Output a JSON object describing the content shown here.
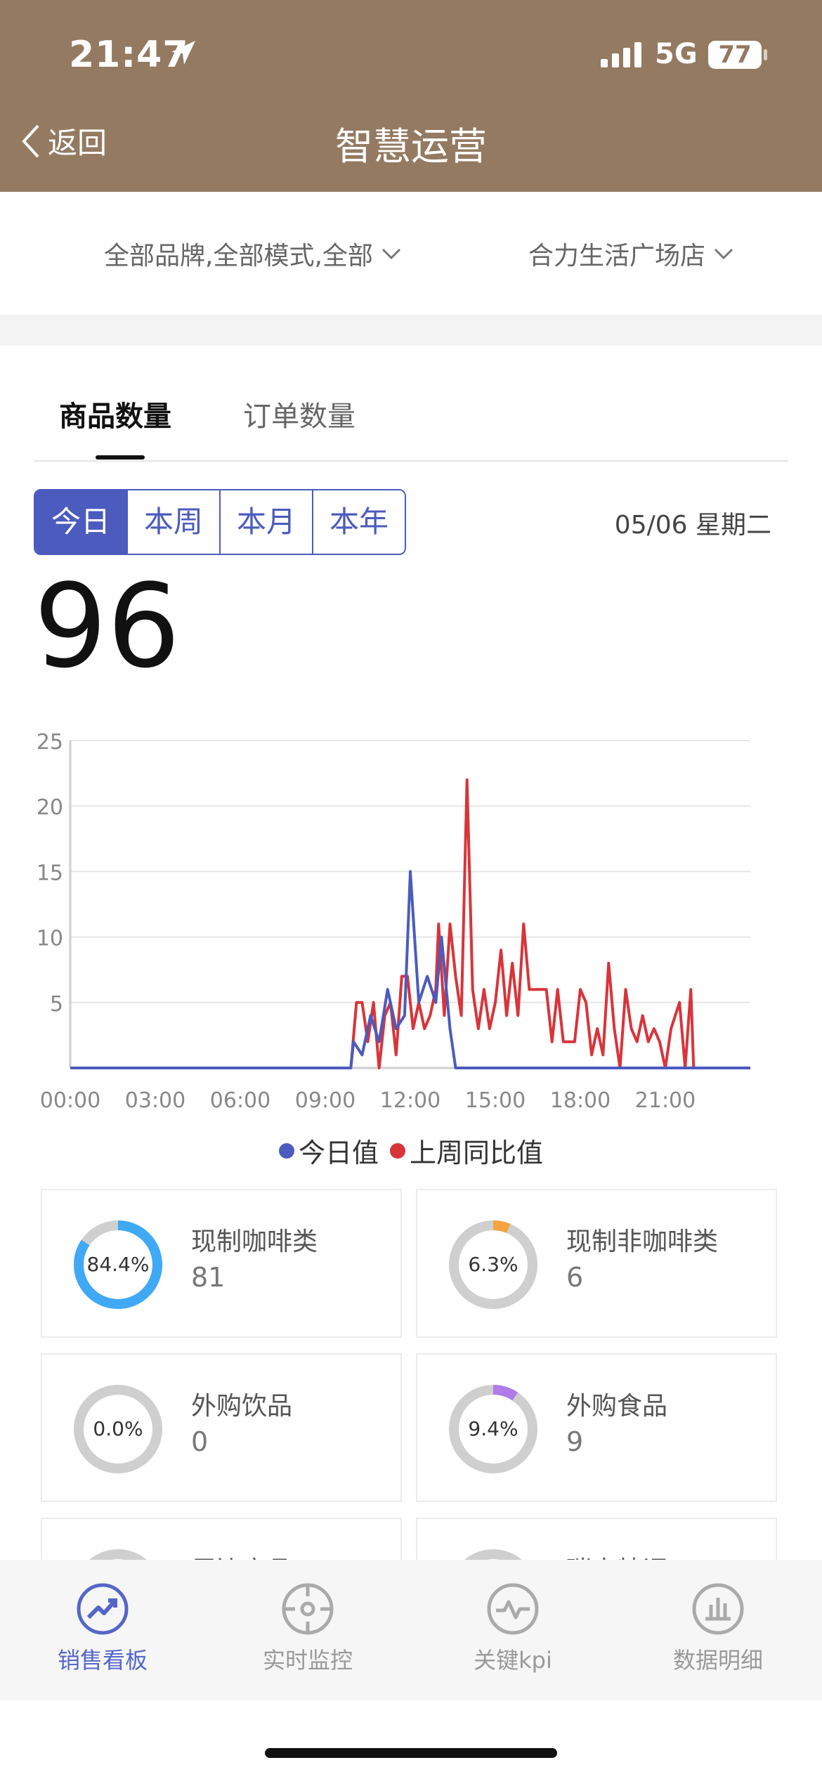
{
  "status_bar": {
    "time": "21:47",
    "network": "5G",
    "battery": "77"
  },
  "header": {
    "back_label": "返回",
    "title": "智慧运营"
  },
  "filters": {
    "brand_mode": "全部品牌,全部模式,全部",
    "store": "合力生活广场店"
  },
  "tabs": [
    {
      "label": "商品数量",
      "active": true
    },
    {
      "label": "订单数量",
      "active": false
    }
  ],
  "periods": [
    {
      "label": "今日",
      "active": true
    },
    {
      "label": "本周"
    },
    {
      "label": "本月"
    },
    {
      "label": "本年"
    }
  ],
  "date_label": "05/06 星期二",
  "total_value": "96",
  "colors": {
    "today": "#4B5BBE",
    "last_week": "#D8343A",
    "header_bg": "#937A61",
    "accent": "#5566C8"
  },
  "chart_data": {
    "type": "line",
    "ylim": [
      0,
      25
    ],
    "yticks": [
      "5",
      "10",
      "15",
      "20",
      "25"
    ],
    "xticks": [
      "00:00",
      "03:00",
      "06:00",
      "09:00",
      "12:00",
      "15:00",
      "18:00",
      "21:00"
    ],
    "xlim": [
      0,
      24
    ],
    "grid": true,
    "legend_position": "bottom",
    "series": [
      {
        "name": "今日值",
        "color": "#4B5BBE",
        "points": [
          [
            0,
            0
          ],
          [
            9.9,
            0
          ],
          [
            10.0,
            2
          ],
          [
            10.3,
            1
          ],
          [
            10.6,
            4
          ],
          [
            10.9,
            2
          ],
          [
            11.2,
            6
          ],
          [
            11.5,
            3
          ],
          [
            11.8,
            4
          ],
          [
            12.0,
            15
          ],
          [
            12.3,
            5
          ],
          [
            12.6,
            7
          ],
          [
            12.9,
            5
          ],
          [
            13.1,
            10
          ],
          [
            13.4,
            3
          ],
          [
            13.6,
            0
          ],
          [
            24,
            0
          ]
        ]
      },
      {
        "name": "上周同比值",
        "color": "#D8343A",
        "points": [
          [
            0,
            0
          ],
          [
            9.9,
            0
          ],
          [
            10.1,
            5
          ],
          [
            10.3,
            5
          ],
          [
            10.5,
            2
          ],
          [
            10.7,
            5
          ],
          [
            10.9,
            0
          ],
          [
            11.1,
            4
          ],
          [
            11.3,
            5
          ],
          [
            11.5,
            1
          ],
          [
            11.7,
            7
          ],
          [
            11.9,
            7
          ],
          [
            12.1,
            3
          ],
          [
            12.3,
            5
          ],
          [
            12.5,
            3
          ],
          [
            12.7,
            4
          ],
          [
            12.9,
            6
          ],
          [
            13.0,
            11
          ],
          [
            13.2,
            4
          ],
          [
            13.4,
            11
          ],
          [
            13.6,
            7
          ],
          [
            13.8,
            4
          ],
          [
            14.0,
            22
          ],
          [
            14.2,
            6
          ],
          [
            14.4,
            3
          ],
          [
            14.6,
            6
          ],
          [
            14.8,
            3
          ],
          [
            15.0,
            5
          ],
          [
            15.2,
            9
          ],
          [
            15.4,
            4
          ],
          [
            15.6,
            8
          ],
          [
            15.8,
            4
          ],
          [
            16.0,
            11
          ],
          [
            16.2,
            6
          ],
          [
            16.4,
            6
          ],
          [
            16.6,
            6
          ],
          [
            16.8,
            6
          ],
          [
            17.0,
            2
          ],
          [
            17.2,
            6
          ],
          [
            17.4,
            2
          ],
          [
            17.6,
            2
          ],
          [
            17.8,
            2
          ],
          [
            18.0,
            6
          ],
          [
            18.2,
            5
          ],
          [
            18.4,
            1
          ],
          [
            18.6,
            3
          ],
          [
            18.8,
            1
          ],
          [
            19.0,
            8
          ],
          [
            19.2,
            3
          ],
          [
            19.4,
            0
          ],
          [
            19.6,
            6
          ],
          [
            19.8,
            3
          ],
          [
            20.0,
            2
          ],
          [
            20.2,
            4
          ],
          [
            20.4,
            2
          ],
          [
            20.6,
            3
          ],
          [
            20.8,
            2
          ],
          [
            21.0,
            0
          ],
          [
            21.2,
            3
          ],
          [
            21.5,
            5
          ],
          [
            21.7,
            0
          ],
          [
            21.9,
            6
          ],
          [
            22.0,
            0
          ],
          [
            24,
            0
          ]
        ]
      }
    ]
  },
  "categories": [
    {
      "name": "现制咖啡类",
      "value": "81",
      "percent_label": "84.4%",
      "percent": 0.844,
      "color": "#3FA9F5"
    },
    {
      "name": "现制非咖啡类",
      "value": "6",
      "percent_label": "6.3%",
      "percent": 0.063,
      "color": "#F5A23F"
    },
    {
      "name": "外购饮品",
      "value": "0",
      "percent_label": "0.0%",
      "percent": 0.0,
      "color": "#3FA9F5"
    },
    {
      "name": "外购食品",
      "value": "9",
      "percent_label": "9.4%",
      "percent": 0.094,
      "color": "#B07BE8"
    },
    {
      "name": "周边商品"
    },
    {
      "name": "瑞幸特调"
    }
  ],
  "bottom_nav": [
    {
      "label": "销售看板",
      "icon": "trend-icon",
      "active": true
    },
    {
      "label": "实时监控",
      "icon": "target-icon"
    },
    {
      "label": "关键kpi",
      "icon": "pulse-icon"
    },
    {
      "label": "数据明细",
      "icon": "bar-chart-icon"
    }
  ]
}
